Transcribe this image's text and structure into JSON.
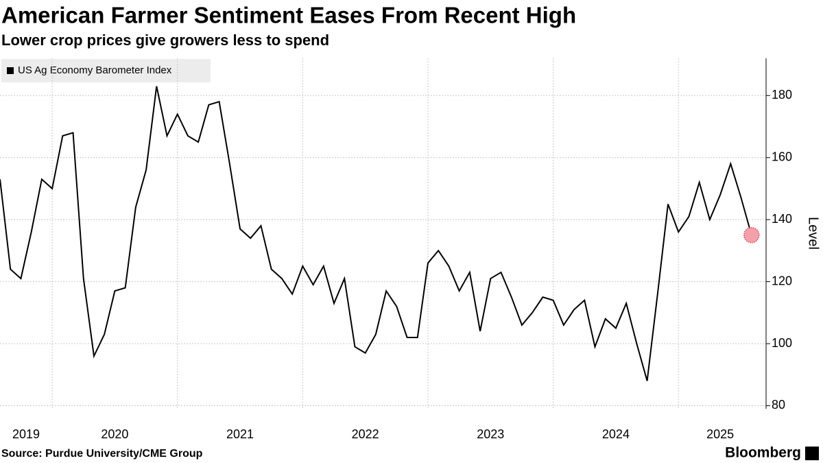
{
  "chart_data": {
    "type": "line",
    "title": "American Farmer Sentiment Eases From Recent High",
    "subtitle": "Lower crop prices give growers less to spend",
    "y_label": "Level",
    "source": "Source: Purdue University/CME Group",
    "brand": "Bloomberg",
    "x": [
      "2019-08",
      "2019-09",
      "2019-10",
      "2019-11",
      "2019-12",
      "2020-01",
      "2020-02",
      "2020-03",
      "2020-04",
      "2020-05",
      "2020-06",
      "2020-07",
      "2020-08",
      "2020-09",
      "2020-10",
      "2020-11",
      "2020-12",
      "2021-01",
      "2021-02",
      "2021-03",
      "2021-04",
      "2021-05",
      "2021-06",
      "2021-07",
      "2021-08",
      "2021-09",
      "2021-10",
      "2021-11",
      "2021-12",
      "2022-01",
      "2022-02",
      "2022-03",
      "2022-04",
      "2022-05",
      "2022-06",
      "2022-07",
      "2022-08",
      "2022-09",
      "2022-10",
      "2022-11",
      "2022-12",
      "2023-01",
      "2023-02",
      "2023-03",
      "2023-04",
      "2023-05",
      "2023-06",
      "2023-07",
      "2023-08",
      "2023-09",
      "2023-10",
      "2023-11",
      "2023-12",
      "2024-01",
      "2024-02",
      "2024-03",
      "2024-04",
      "2024-05",
      "2024-06",
      "2024-07",
      "2024-08",
      "2024-09",
      "2024-10",
      "2024-11",
      "2024-12",
      "2025-01",
      "2025-02",
      "2025-03",
      "2025-04",
      "2025-05",
      "2025-06",
      "2025-07",
      "2025-08"
    ],
    "series": [
      {
        "name": "US Ag Economy Barometer Index",
        "color": "#000000",
        "values": [
          153,
          124,
          121,
          136,
          153,
          150,
          167,
          168,
          121,
          96,
          103,
          117,
          118,
          144,
          156,
          183,
          167,
          174,
          167,
          165,
          177,
          178,
          158,
          137,
          134,
          138,
          124,
          121,
          116,
          125,
          119,
          125,
          113,
          121,
          99,
          97,
          103,
          117,
          112,
          102,
          102,
          126,
          130,
          125,
          117,
          123,
          104,
          121,
          123,
          115,
          106,
          110,
          115,
          114,
          106,
          111,
          114,
          99,
          108,
          105,
          113,
          100,
          88,
          116,
          145,
          136,
          141,
          152,
          140,
          148,
          158,
          147,
          135
        ]
      }
    ],
    "xlim": [
      "2019-08",
      "2025-09"
    ],
    "xticks": [
      2019,
      2020,
      2021,
      2022,
      2023,
      2024,
      2025
    ],
    "ylim": [
      79,
      192
    ],
    "yticks": [
      80,
      100,
      120,
      140,
      160,
      180
    ],
    "grid": true,
    "last_point_color": "#f4a0aa"
  }
}
